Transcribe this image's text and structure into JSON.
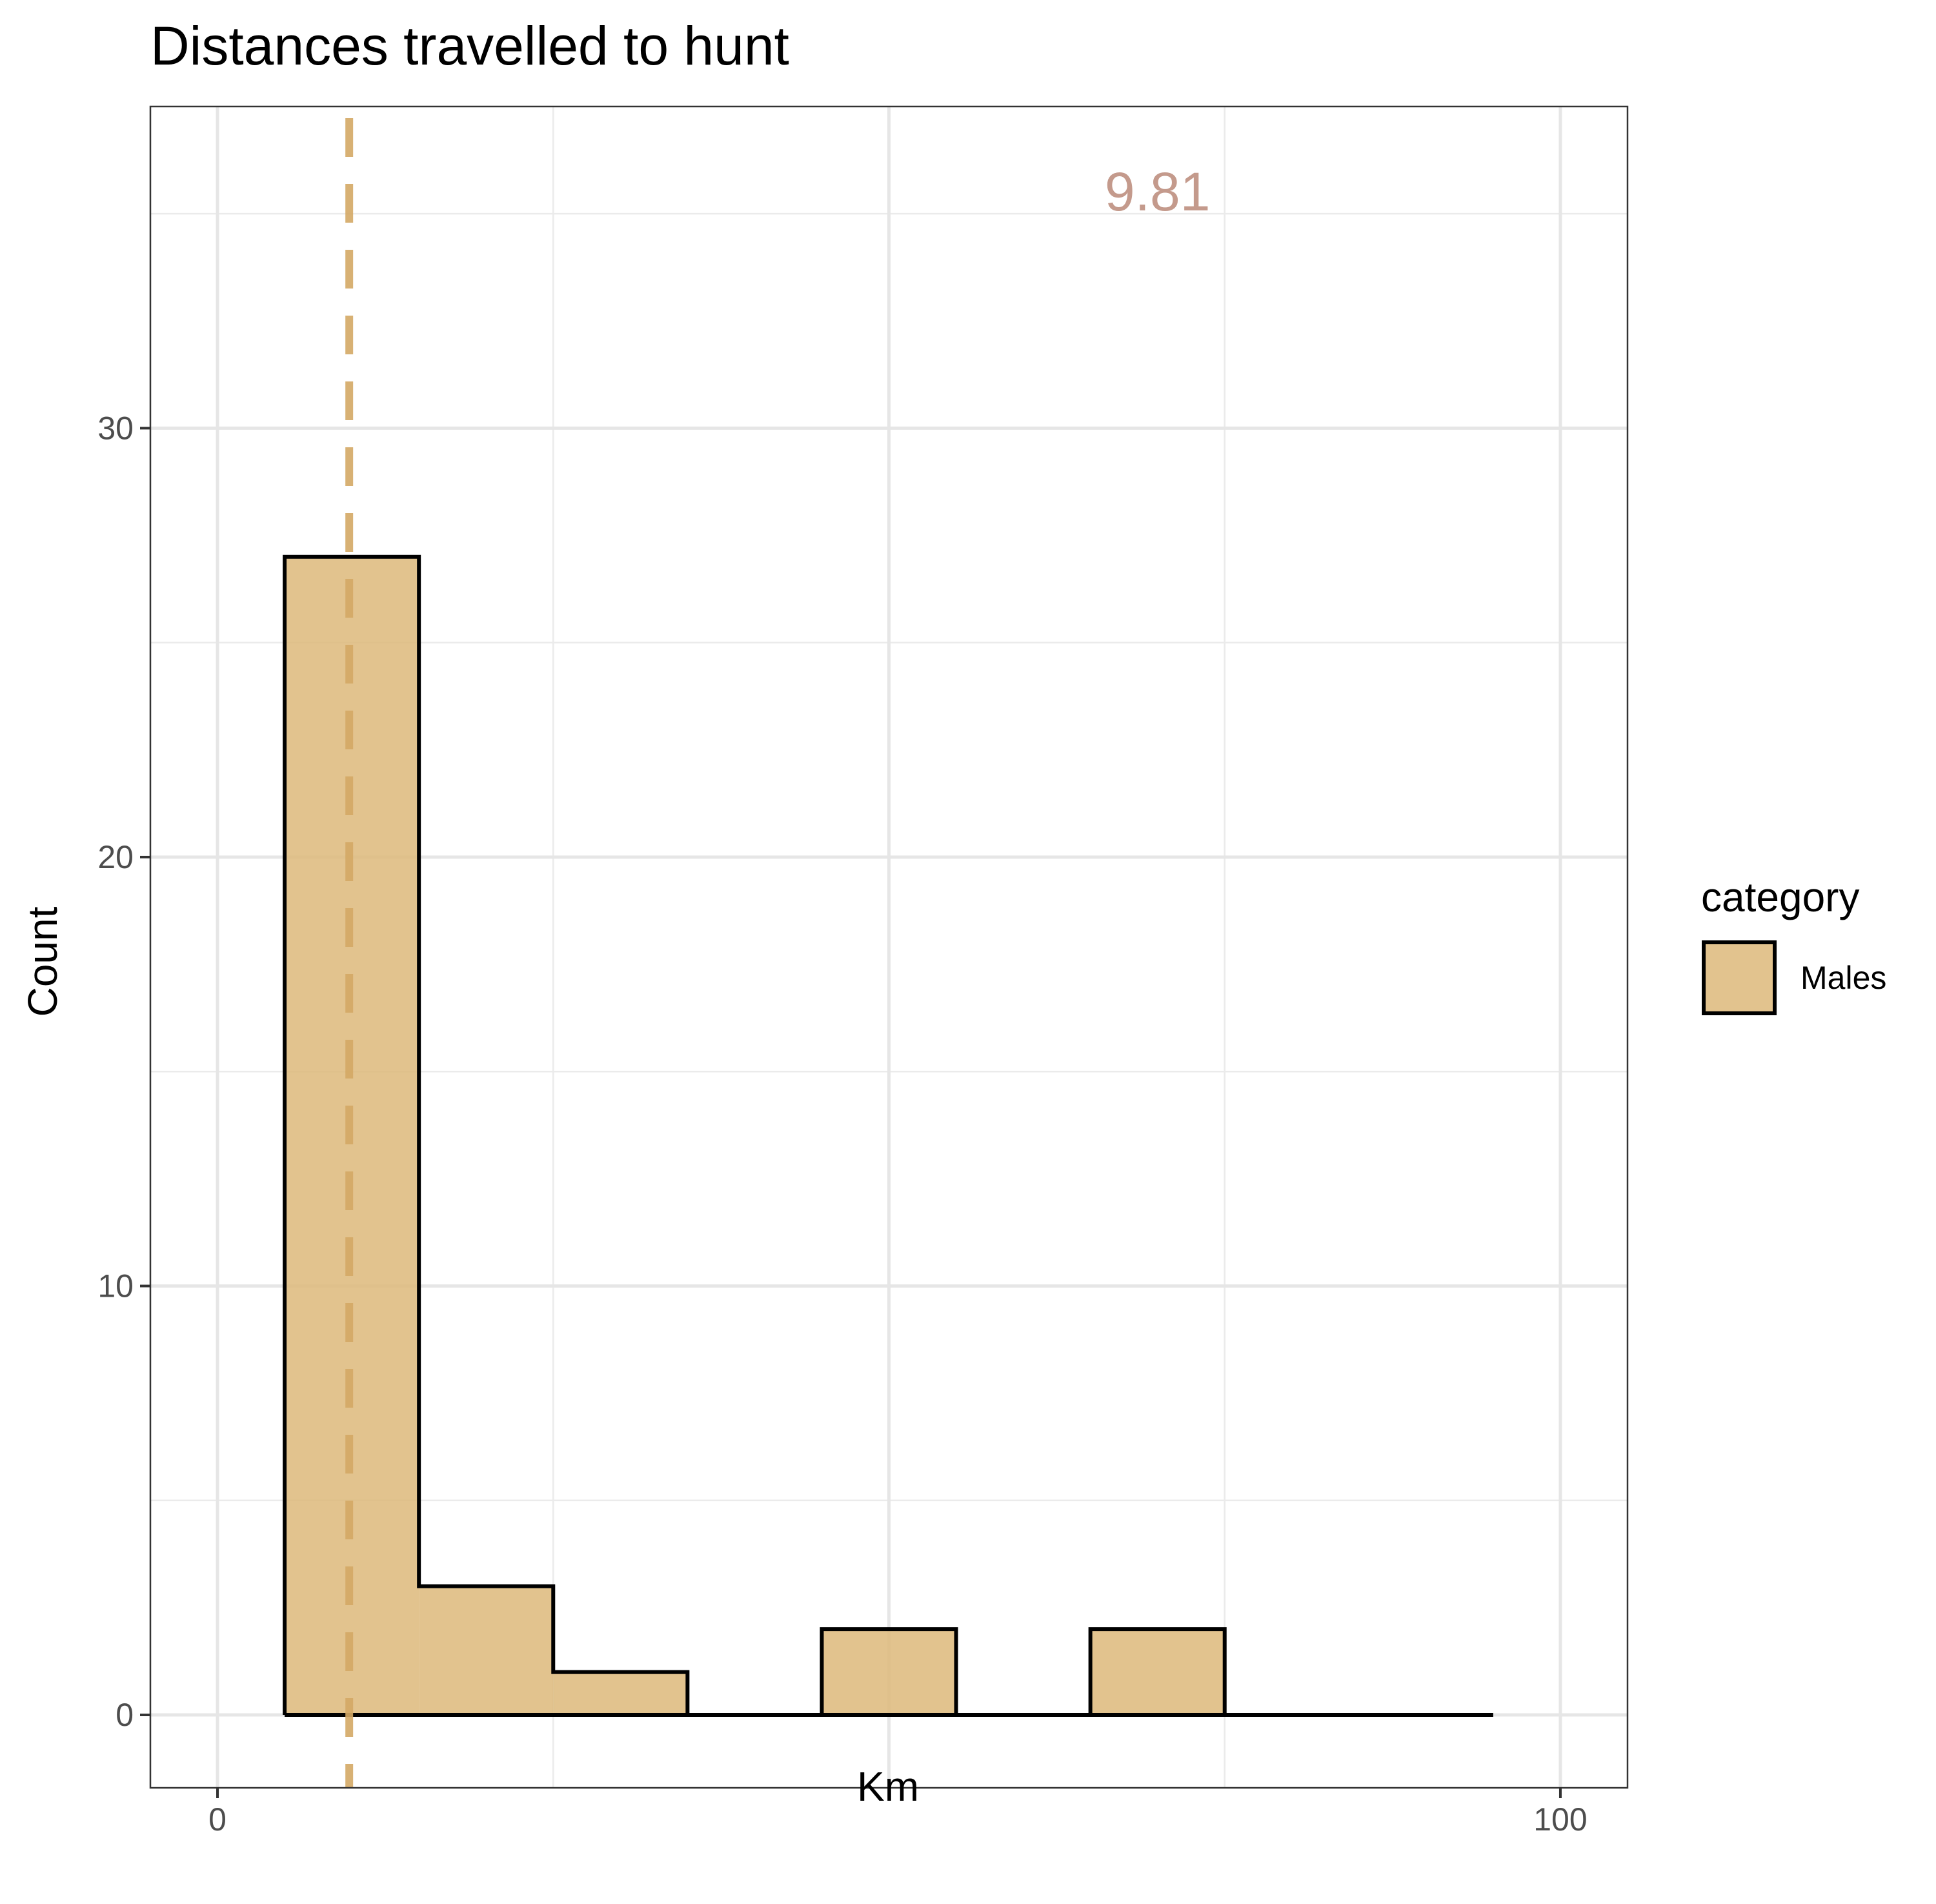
{
  "chart_data": {
    "type": "bar",
    "title": "Distances travelled to hunt",
    "xlabel": "Km",
    "ylabel": "Count",
    "xlim": [
      -5,
      105
    ],
    "ylim": [
      -1.7,
      37.5
    ],
    "x_ticks": [
      0,
      50,
      100
    ],
    "x_tick_labels": [
      "0",
      "",
      "100"
    ],
    "y_ticks": [
      0,
      10,
      20,
      30
    ],
    "y_tick_labels": [
      "0",
      "10",
      "20",
      "30"
    ],
    "y_minor_ticks": [
      5,
      15,
      25,
      35
    ],
    "grid": true,
    "bins": [
      {
        "x0": 5,
        "x1": 15,
        "count": 27
      },
      {
        "x0": 15,
        "x1": 25,
        "count": 3
      },
      {
        "x0": 25,
        "x1": 35,
        "count": 1
      },
      {
        "x0": 35,
        "x1": 45,
        "count": 0
      },
      {
        "x0": 45,
        "x1": 55,
        "count": 2
      },
      {
        "x0": 55,
        "x1": 65,
        "count": 0
      },
      {
        "x0": 65,
        "x1": 75,
        "count": 2
      },
      {
        "x0": 75,
        "x1": 85,
        "count": 0
      },
      {
        "x0": 85,
        "x1": 95,
        "count": 0
      }
    ],
    "series": [
      {
        "name": "Males",
        "color": "#ddb97a"
      }
    ],
    "reference_line": {
      "x": 9.81,
      "style": "dashed",
      "color": "#d4a965"
    },
    "annotation": {
      "text": "9.81",
      "x": 70,
      "y": 35.5,
      "color": "#c49a8c"
    },
    "legend": {
      "title": "category",
      "position": "right",
      "labels": [
        "Males"
      ]
    }
  }
}
